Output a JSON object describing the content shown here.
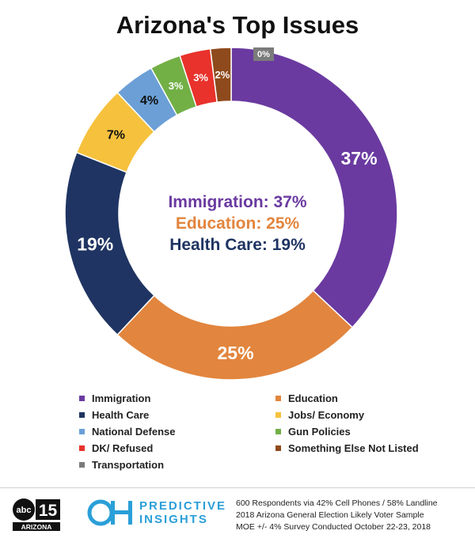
{
  "chart_data": {
    "type": "pie",
    "title": "Arizona's Top Issues",
    "donut": true,
    "slices": [
      {
        "label": "Immigration",
        "value": 37,
        "value_label": "37%",
        "color": "#6a3aa0",
        "label_color": "#ffffff"
      },
      {
        "label": "Education",
        "value": 25,
        "value_label": "25%",
        "color": "#e2853e",
        "label_color": "#ffffff"
      },
      {
        "label": "Health Care",
        "value": 19,
        "value_label": "19%",
        "color": "#1f3462",
        "label_color": "#ffffff"
      },
      {
        "label": "Jobs/ Economy",
        "value": 7,
        "value_label": "7%",
        "color": "#f6c13d",
        "label_color": "#111111"
      },
      {
        "label": "National Defense",
        "value": 4,
        "value_label": "4%",
        "color": "#6b9fd6",
        "label_color": "#111111"
      },
      {
        "label": "Gun Policies",
        "value": 3,
        "value_label": "3%",
        "color": "#72b046",
        "label_color": "#ffffff"
      },
      {
        "label": "DK/ Refused",
        "value": 3,
        "value_label": "3%",
        "color": "#e8322b",
        "label_color": "#ffffff"
      },
      {
        "label": "Something Else Not Listed",
        "value": 2,
        "value_label": "2%",
        "color": "#8e4a1c",
        "label_color": "#ffffff"
      },
      {
        "label": "Transportation",
        "value": 0,
        "value_label": "0%",
        "color": "#7b7b7b",
        "label_color": "#ffffff"
      }
    ],
    "center_text": [
      "Immigration: 37%",
      "Education: 25%",
      "Health Care: 19%"
    ],
    "legend_order": [
      "Immigration",
      "Education",
      "Health Care",
      "Jobs/ Economy",
      "National Defense",
      "Gun Policies",
      "DK/ Refused",
      "Something Else Not Listed",
      "Transportation"
    ],
    "legend_placement": "bottom"
  },
  "footer": {
    "abc_number": "15",
    "abc_text": "abc",
    "abc_sub": "ARIZONA",
    "ph_name_line1": "PREDICTIVE",
    "ph_name_line2": "INSIGHTS",
    "notes": [
      "600 Respondents via 42% Cell Phones / 58% Landline",
      "2018 Arizona General Election Likely Voter Sample",
      "MOE +/- 4% Survey Conducted October 22-23, 2018"
    ]
  }
}
